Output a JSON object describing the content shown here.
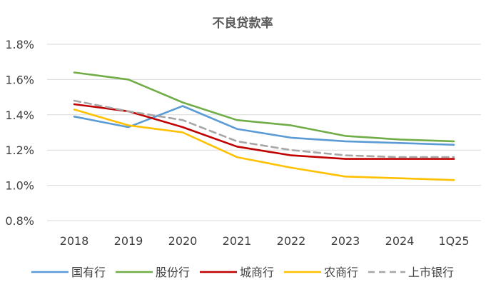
{
  "chart_data": {
    "type": "line",
    "title": "不良贷款率",
    "xlabel": "",
    "ylabel": "",
    "categories": [
      "2018",
      "2019",
      "2020",
      "2021",
      "2022",
      "2023",
      "2024",
      "1Q25"
    ],
    "y_ticks": [
      "0.8%",
      "1.0%",
      "1.2%",
      "1.4%",
      "1.6%",
      "1.8%"
    ],
    "ylim": [
      0.8,
      1.8
    ],
    "grid": true,
    "legend_position": "bottom",
    "series": [
      {
        "name": "国有行",
        "color": "#5b9bd5",
        "dashed": false,
        "values": [
          1.39,
          1.33,
          1.45,
          1.32,
          1.27,
          1.25,
          1.24,
          1.23
        ]
      },
      {
        "name": "股份行",
        "color": "#70ad47",
        "dashed": false,
        "values": [
          1.64,
          1.6,
          1.47,
          1.37,
          1.34,
          1.28,
          1.26,
          1.25
        ]
      },
      {
        "name": "城商行",
        "color": "#c00000",
        "dashed": false,
        "values": [
          1.46,
          1.42,
          1.33,
          1.22,
          1.17,
          1.15,
          1.15,
          1.15
        ]
      },
      {
        "name": "农商行",
        "color": "#ffc000",
        "dashed": false,
        "values": [
          1.43,
          1.34,
          1.3,
          1.16,
          1.1,
          1.05,
          1.04,
          1.03
        ]
      },
      {
        "name": "上市银行",
        "color": "#a6a6a6",
        "dashed": true,
        "values": [
          1.48,
          1.42,
          1.37,
          1.25,
          1.2,
          1.17,
          1.16,
          1.16
        ]
      }
    ]
  }
}
